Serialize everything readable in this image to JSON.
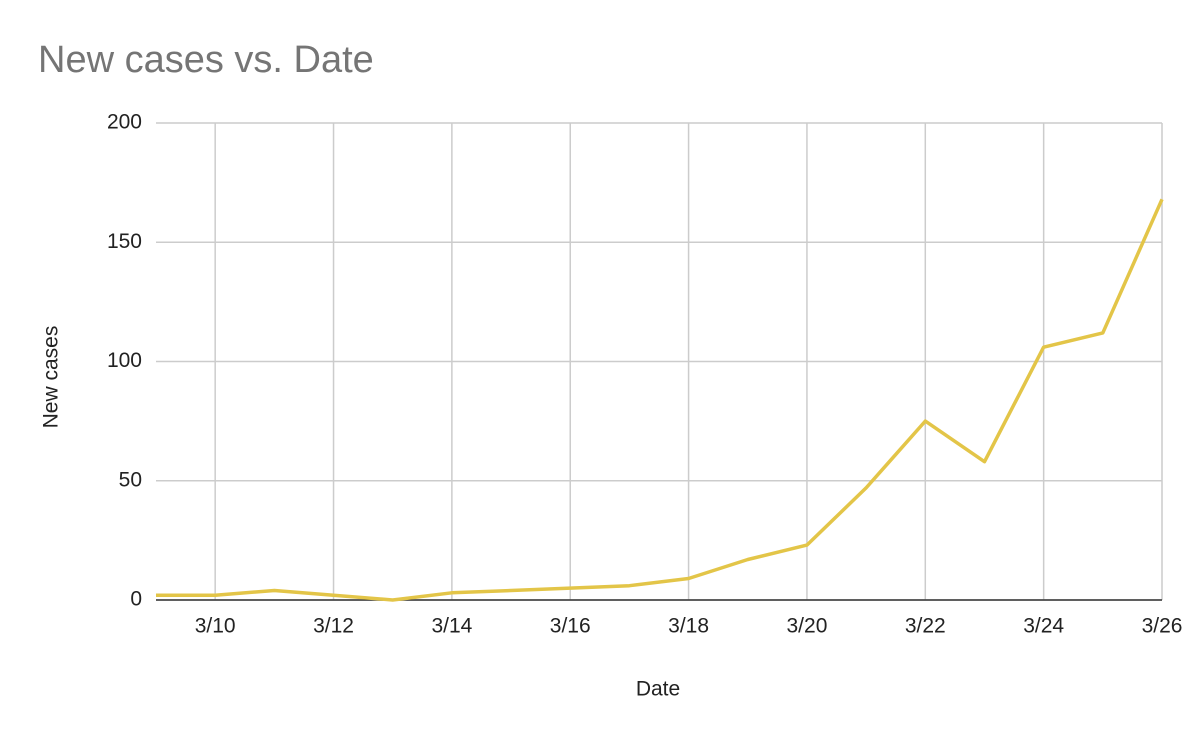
{
  "chart_data": {
    "type": "line",
    "title": "New cases vs. Date",
    "x_label": "Date",
    "y_label": "New cases",
    "categories": [
      null,
      "3/10",
      null,
      "3/12",
      null,
      "3/14",
      null,
      "3/16",
      null,
      "3/18",
      null,
      "3/20",
      null,
      "3/22",
      null,
      "3/24",
      null,
      "3/26"
    ],
    "values": [
      2,
      2,
      4,
      2,
      0,
      3,
      4,
      5,
      6,
      9,
      17,
      23,
      47,
      75,
      58,
      106,
      112,
      168
    ],
    "color": "#e3c548",
    "ylim": [
      0,
      200
    ],
    "yticks": [
      0,
      50,
      100,
      150,
      200
    ],
    "grid": true
  }
}
